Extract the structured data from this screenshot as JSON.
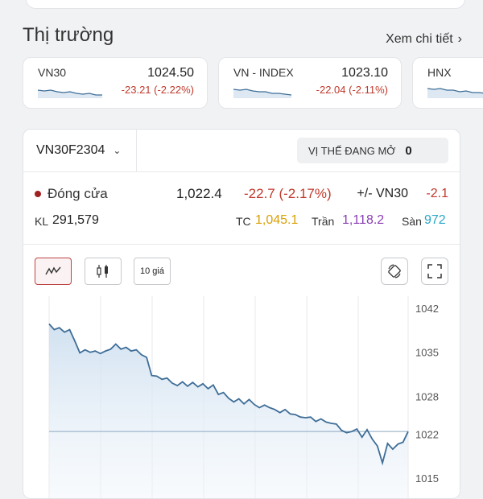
{
  "market": {
    "title": "Thị trường",
    "see_more": "Xem chi tiết",
    "cards": [
      {
        "name": "VN30",
        "value": "1024.50",
        "change": "-23.21 (-2.22%)"
      },
      {
        "name": "VN - INDEX",
        "value": "1023.10",
        "change": "-22.04 (-2.11%)"
      },
      {
        "name": "HNX",
        "value": "",
        "change": ""
      }
    ]
  },
  "panel": {
    "symbol": "VN30F2304",
    "open_position_label": "VỊ THẾ ĐANG MỞ",
    "open_position_value": "0",
    "close_label": "Đóng cửa",
    "close_price": "1,022.4",
    "close_change": "-22.7 (-2.17%)",
    "basis_label": "+/- VN30",
    "basis_value": "-2.1",
    "volume_label": "KL",
    "volume_value": "291,579",
    "ref_label": "TC",
    "ref_value": "1,045.1",
    "ceiling_label": "Trần",
    "ceiling_value": "1,118.2",
    "floor_label": "Sàn",
    "floor_value": "972",
    "toolbar": {
      "line_icon": "line-chart-icon",
      "candle_icon": "candlestick-icon",
      "ten_price_label": "10 giá",
      "rotate_icon": "rotate-icon",
      "expand_icon": "expand-icon"
    }
  },
  "colors": {
    "up": "#2e7d32",
    "down": "#c0392b",
    "ref": "#d8a106",
    "ceiling": "#8a3fb3",
    "floor": "#2aa6c9",
    "line": "#3e6d97"
  },
  "chart_data": {
    "type": "area",
    "title": "",
    "xlabel": "",
    "ylabel": "",
    "y_ticks": [
      "1042",
      "1035",
      "1028",
      "1022",
      "1015"
    ],
    "y_tick_values": [
      1042,
      1035,
      1028,
      1022,
      1015
    ],
    "ylim": [
      1015,
      1042
    ],
    "reference_line": 1022.4,
    "grid": true,
    "x": [
      0,
      1,
      2,
      3,
      4,
      5,
      6,
      7,
      8,
      9,
      10,
      11,
      12,
      13,
      14,
      15,
      16,
      17,
      18,
      19,
      20,
      21,
      22,
      23,
      24,
      25,
      26,
      27,
      28,
      29,
      30,
      31,
      32,
      33,
      34,
      35,
      36,
      37,
      38,
      39,
      40,
      41,
      42,
      43,
      44,
      45,
      46,
      47,
      48,
      49,
      50,
      51,
      52,
      53,
      54,
      55,
      56,
      57,
      58,
      59,
      60,
      61,
      62,
      63,
      64,
      65,
      66,
      67,
      68,
      69,
      70
    ],
    "values": [
      1039.5,
      1038.6,
      1038.9,
      1038.2,
      1038.6,
      1036.8,
      1034.9,
      1035.4,
      1035.0,
      1035.2,
      1034.8,
      1035.2,
      1035.5,
      1036.3,
      1035.5,
      1035.8,
      1035.2,
      1035.4,
      1034.6,
      1034.2,
      1031.3,
      1031.2,
      1030.7,
      1030.9,
      1030.1,
      1029.7,
      1030.3,
      1029.6,
      1030.2,
      1029.5,
      1030.0,
      1029.2,
      1029.8,
      1028.3,
      1028.6,
      1027.7,
      1027.1,
      1027.6,
      1026.8,
      1027.5,
      1026.7,
      1026.2,
      1026.6,
      1026.2,
      1025.9,
      1025.4,
      1025.9,
      1025.2,
      1025.1,
      1024.7,
      1024.6,
      1024.7,
      1024.0,
      1024.4,
      1023.9,
      1023.7,
      1023.6,
      1022.6,
      1022.2,
      1022.4,
      1022.8,
      1021.5,
      1022.7,
      1021.2,
      1020.1,
      1017.4,
      1020.5,
      1019.6,
      1020.4,
      1020.7,
      1022.4
    ]
  }
}
